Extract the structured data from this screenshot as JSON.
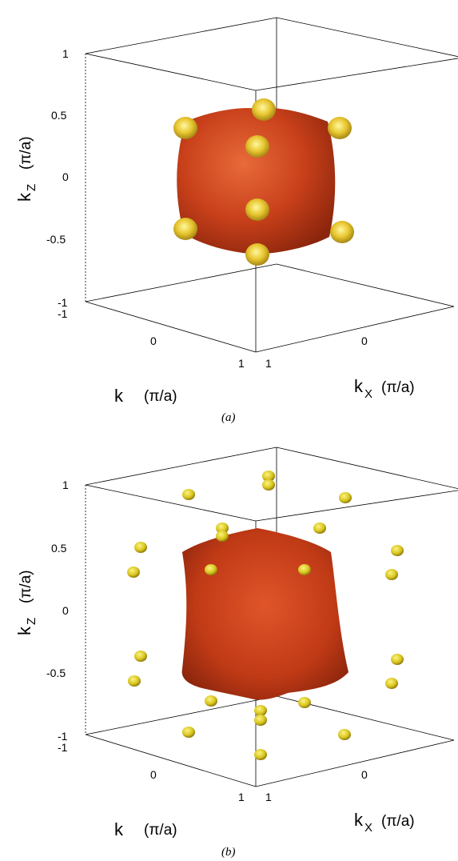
{
  "chart_data": [
    {
      "type": "isosurface-3d",
      "caption": "(a)",
      "zlabel": {
        "main": "k",
        "sub": "Z",
        "unit": "(π/a)"
      },
      "xlabel": {
        "main": "k",
        "sub": "X",
        "unit": "(π/a)"
      },
      "ylabel": {
        "main": "k",
        "sub": "",
        "unit": "(π/a)"
      },
      "z_ticks": [
        "1",
        "0.5",
        "0",
        "-0.5",
        "-1"
      ],
      "y_ticks": [
        "-1",
        "0",
        "1"
      ],
      "x_ticks": [
        "1",
        "0"
      ],
      "xlim": [
        -1,
        1
      ],
      "ylim": [
        -1,
        1
      ],
      "zlim": [
        -1,
        1
      ],
      "main_surface": {
        "shape": "rounded cube",
        "half_width": 0.6,
        "color": "#c8401a"
      },
      "pockets": {
        "count": 8,
        "location": "cube corners, attached",
        "color": "#e8c730"
      }
    },
    {
      "type": "isosurface-3d",
      "caption": "(b)",
      "zlabel": {
        "main": "k",
        "sub": "Z",
        "unit": "(π/a)"
      },
      "xlabel": {
        "main": "k",
        "sub": "X",
        "unit": "(π/a)"
      },
      "ylabel": {
        "main": "k",
        "sub": "",
        "unit": "(π/a)"
      },
      "z_ticks": [
        "1",
        "0.5",
        "0",
        "-0.5",
        "-1"
      ],
      "y_ticks": [
        "-1",
        "0",
        "1"
      ],
      "x_ticks": [
        "1",
        "0"
      ],
      "xlim": [
        -1,
        1
      ],
      "ylim": [
        -1,
        1
      ],
      "zlim": [
        -1,
        1
      ],
      "main_surface": {
        "shape": "star-like rounded cube",
        "half_width": 0.6,
        "color": "#c8401a"
      },
      "pockets": {
        "count": 24,
        "location": "detached, near zone edges",
        "color": "#e8d840"
      }
    }
  ]
}
